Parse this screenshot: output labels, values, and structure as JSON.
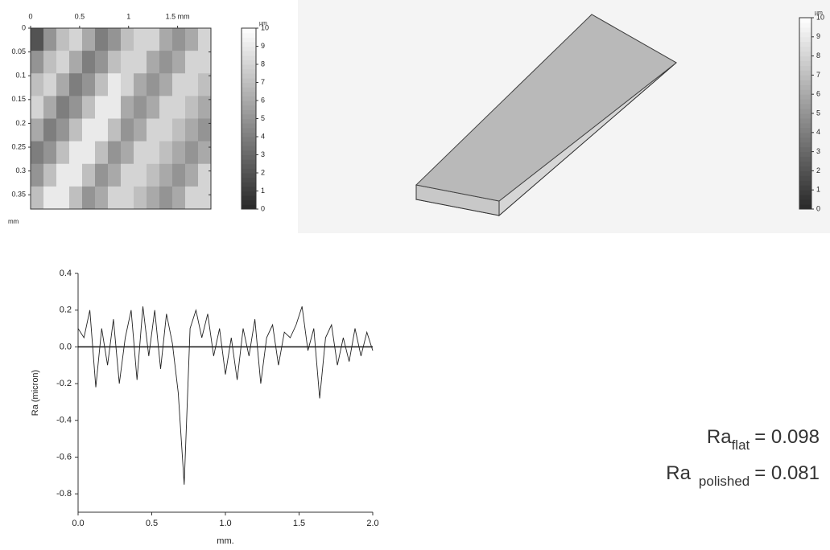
{
  "chart_data": [
    {
      "type": "heatmap",
      "xlim": [
        0,
        1.84
      ],
      "ylim": [
        0,
        0.38
      ],
      "xticks": [
        0,
        0.5,
        1,
        {
          "value": 1.5,
          "label": "1.5 mm"
        }
      ],
      "yticks": [
        0,
        0.05,
        0.1,
        0.15,
        0.2,
        0.25,
        0.3,
        0.35
      ],
      "y_label": "mm",
      "z": [
        [
          2,
          5,
          7,
          8,
          6,
          4,
          5,
          7,
          8,
          8,
          6,
          5,
          6,
          8
        ],
        [
          5,
          7,
          8,
          6,
          4,
          5,
          7,
          8,
          8,
          6,
          5,
          6,
          8,
          8
        ],
        [
          7,
          8,
          6,
          4,
          5,
          7,
          9,
          8,
          6,
          5,
          6,
          8,
          8,
          7
        ],
        [
          8,
          6,
          4,
          5,
          7,
          9,
          9,
          6,
          5,
          6,
          8,
          8,
          7,
          6
        ],
        [
          6,
          4,
          5,
          7,
          9,
          9,
          7,
          5,
          6,
          8,
          8,
          7,
          6,
          5
        ],
        [
          4,
          5,
          7,
          9,
          9,
          7,
          5,
          6,
          8,
          8,
          7,
          6,
          5,
          6
        ],
        [
          5,
          7,
          9,
          9,
          7,
          5,
          6,
          8,
          8,
          7,
          6,
          5,
          6,
          8
        ],
        [
          7,
          9,
          9,
          7,
          5,
          6,
          8,
          8,
          7,
          6,
          5,
          6,
          8,
          8
        ]
      ],
      "clim": [
        0,
        10
      ],
      "cticks": [
        0,
        1,
        2,
        3,
        4,
        5,
        6,
        7,
        8,
        9,
        10
      ],
      "colorbar_label": "µm"
    },
    {
      "type": "surface3d",
      "clim": [
        0,
        10
      ],
      "cticks": [
        0,
        1,
        2,
        3,
        4,
        5,
        6,
        7,
        8,
        9,
        10
      ],
      "colorbar_label": "µm"
    },
    {
      "type": "line",
      "xlim": [
        0,
        2
      ],
      "ylim": [
        -0.9,
        0.4
      ],
      "xticks": [
        {
          "value": 0,
          "label": "0.0"
        },
        0.5,
        {
          "value": 1,
          "label": "1.0"
        },
        1.5,
        {
          "value": 2,
          "label": "2.0"
        }
      ],
      "yticks": [
        -0.8,
        -0.6,
        -0.4,
        -0.2,
        {
          "value": 0,
          "label": "0.0"
        },
        0.2,
        0.4
      ],
      "xlabel": "mm.",
      "ylabel": "Ra (micron)",
      "reference_line": 0,
      "series": [
        {
          "color": "#222222",
          "x": [
            0,
            0.04,
            0.08,
            0.12,
            0.16,
            0.2,
            0.24,
            0.28,
            0.32,
            0.36,
            0.4,
            0.44,
            0.48,
            0.52,
            0.56,
            0.6,
            0.64,
            0.68,
            0.72,
            0.76,
            0.8,
            0.84,
            0.88,
            0.92,
            0.96,
            1.0,
            1.04,
            1.08,
            1.12,
            1.16,
            1.2,
            1.24,
            1.28,
            1.32,
            1.36,
            1.4,
            1.44,
            1.48,
            1.52,
            1.56,
            1.6,
            1.64,
            1.68,
            1.72,
            1.76,
            1.8,
            1.84,
            1.88,
            1.92,
            1.96,
            2.0
          ],
          "values": [
            0.1,
            0.05,
            0.2,
            -0.22,
            0.1,
            -0.1,
            0.15,
            -0.2,
            0.05,
            0.2,
            -0.18,
            0.22,
            -0.05,
            0.2,
            -0.12,
            0.18,
            0.02,
            -0.25,
            -0.75,
            0.1,
            0.2,
            0.05,
            0.18,
            -0.05,
            0.1,
            -0.15,
            0.05,
            -0.18,
            0.1,
            -0.05,
            0.15,
            -0.2,
            0.05,
            0.12,
            -0.1,
            0.08,
            0.05,
            0.12,
            0.22,
            -0.02,
            0.1,
            -0.28,
            0.05,
            0.12,
            -0.1,
            0.05,
            -0.08,
            0.1,
            -0.05,
            0.08,
            -0.02
          ]
        }
      ]
    }
  ],
  "annotations": [
    {
      "base": "Ra",
      "sub": "flat",
      "rest": "= 0.098"
    },
    {
      "base": "Ra",
      "sub": "polished",
      "rest": "= 0.081"
    }
  ]
}
